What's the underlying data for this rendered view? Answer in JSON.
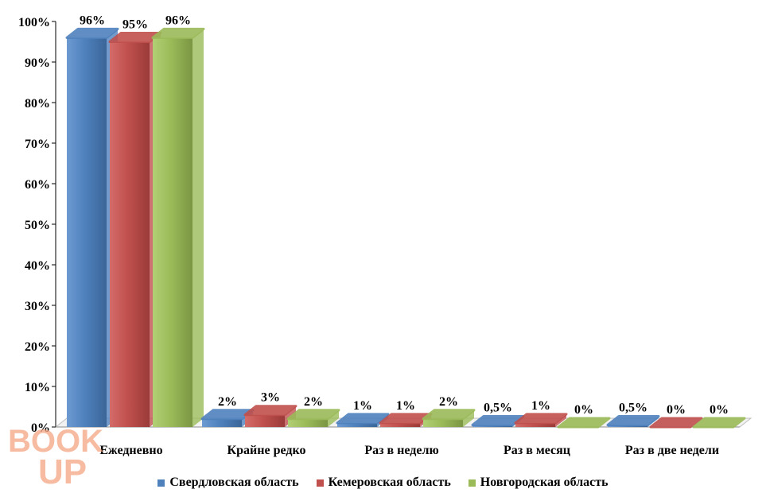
{
  "chart_data": {
    "type": "bar",
    "categories": [
      "Ежедневно",
      "Крайне редко",
      "Раз в неделю",
      "Раз в месяц",
      "Раз в две недели"
    ],
    "series": [
      {
        "name": "Свердловская область",
        "color": "#4F81BD",
        "values": [
          96,
          2,
          1,
          0.5,
          0.5
        ],
        "labels": [
          "96%",
          "2%",
          "1%",
          "0,5%",
          "0,5%"
        ]
      },
      {
        "name": "Кемеровская область",
        "color": "#C0504D",
        "values": [
          95,
          3,
          1,
          1,
          0
        ],
        "labels": [
          "95%",
          "3%",
          "1%",
          "1%",
          "0%"
        ]
      },
      {
        "name": "Новгородская область",
        "color": "#9BBB59",
        "values": [
          96,
          2,
          2,
          0,
          0
        ],
        "labels": [
          "96%",
          "2%",
          "2%",
          "0%",
          "0%"
        ]
      }
    ],
    "ylim": [
      0,
      100
    ],
    "yticks": [
      "0%",
      "10%",
      "20%",
      "30%",
      "40%",
      "50%",
      "60%",
      "70%",
      "80%",
      "90%",
      "100%"
    ],
    "legend_position": "bottom",
    "grid": false
  },
  "watermark": {
    "text_top": "BOOK",
    "text_bottom": "UP",
    "color": "#F4A582"
  }
}
